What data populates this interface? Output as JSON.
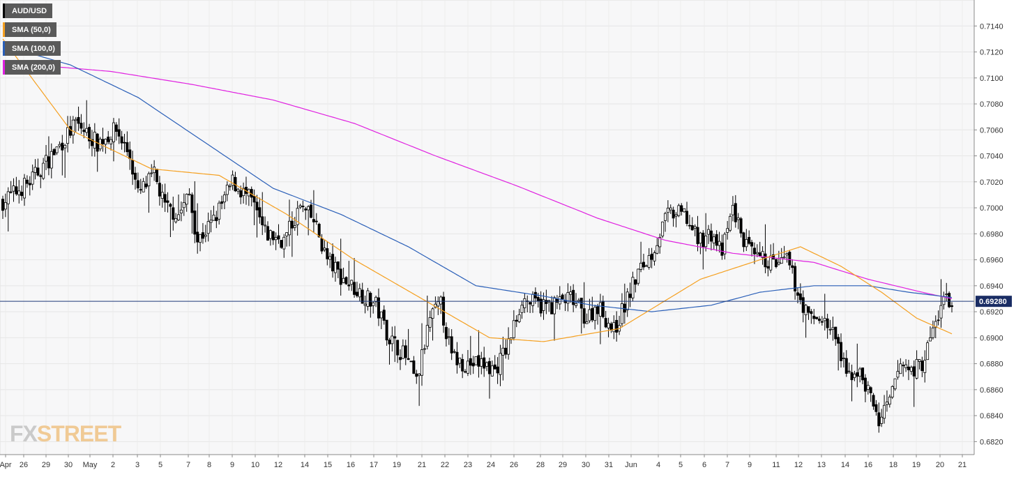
{
  "chart_data": {
    "type": "candlestick",
    "symbol": "AUD/USD",
    "ylim": [
      0.681,
      0.716
    ],
    "y_ticks": [
      "0.6820",
      "0.6840",
      "0.6860",
      "0.6880",
      "0.6900",
      "0.6920",
      "0.6940",
      "0.6960",
      "0.6980",
      "0.7000",
      "0.7020",
      "0.7040",
      "0.7060",
      "0.7080",
      "0.7100",
      "0.7120",
      "0.7140"
    ],
    "x_ticks": [
      "Apr",
      "26",
      "29",
      "30",
      "May",
      "2",
      "3",
      "5",
      "7",
      "8",
      "9",
      "10",
      "12",
      "14",
      "15",
      "16",
      "17",
      "19",
      "21",
      "22",
      "23",
      "24",
      "26",
      "28",
      "29",
      "30",
      "31",
      "Jun",
      "4",
      "5",
      "6",
      "7",
      "9",
      "11",
      "12",
      "13",
      "14",
      "16",
      "18",
      "19",
      "20",
      "21"
    ],
    "current_price": 0.6928,
    "current_price_label": "0.69280",
    "legend": [
      {
        "label": "AUD/USD",
        "color": "#000000"
      },
      {
        "label": "SMA (50,0)",
        "color": "#f5a020"
      },
      {
        "label": "SMA (100,0)",
        "color": "#2a5fb8"
      },
      {
        "label": "SMA (200,0)",
        "color": "#e020e0"
      }
    ],
    "close_anchors": [
      [
        0,
        0.7005
      ],
      [
        10,
        0.702
      ],
      [
        20,
        0.7045
      ],
      [
        27,
        0.7065
      ],
      [
        35,
        0.705
      ],
      [
        42,
        0.706
      ],
      [
        47,
        0.704
      ],
      [
        50,
        0.701
      ],
      [
        56,
        0.7025
      ],
      [
        60,
        0.7
      ],
      [
        65,
        0.6995
      ],
      [
        69,
        0.701
      ],
      [
        72,
        0.6975
      ],
      [
        78,
        0.699
      ],
      [
        85,
        0.702
      ],
      [
        92,
        0.7005
      ],
      [
        97,
        0.698
      ],
      [
        104,
        0.6975
      ],
      [
        110,
        0.7
      ],
      [
        115,
        0.699
      ],
      [
        120,
        0.696
      ],
      [
        126,
        0.6945
      ],
      [
        132,
        0.6935
      ],
      [
        138,
        0.6925
      ],
      [
        143,
        0.69
      ],
      [
        149,
        0.6885
      ],
      [
        153,
        0.6865
      ],
      [
        158,
        0.6915
      ],
      [
        162,
        0.6925
      ],
      [
        166,
        0.6885
      ],
      [
        171,
        0.688
      ],
      [
        177,
        0.688
      ],
      [
        182,
        0.6875
      ],
      [
        187,
        0.6895
      ],
      [
        192,
        0.693
      ],
      [
        198,
        0.6925
      ],
      [
        203,
        0.6925
      ],
      [
        210,
        0.693
      ],
      [
        216,
        0.6915
      ],
      [
        220,
        0.6925
      ],
      [
        226,
        0.6905
      ],
      [
        231,
        0.693
      ],
      [
        235,
        0.695
      ],
      [
        240,
        0.6965
      ],
      [
        246,
        0.6995
      ],
      [
        252,
        0.6995
      ],
      [
        257,
        0.6975
      ],
      [
        262,
        0.698
      ],
      [
        266,
        0.6965
      ],
      [
        270,
        0.7
      ],
      [
        274,
        0.6975
      ],
      [
        278,
        0.696
      ],
      [
        282,
        0.696
      ],
      [
        287,
        0.6955
      ],
      [
        290,
        0.696
      ],
      [
        294,
        0.6935
      ],
      [
        298,
        0.6915
      ],
      [
        303,
        0.6915
      ],
      [
        308,
        0.69
      ],
      [
        312,
        0.687
      ],
      [
        316,
        0.6875
      ],
      [
        320,
        0.686
      ],
      [
        324,
        0.6835
      ],
      [
        328,
        0.685
      ],
      [
        332,
        0.688
      ],
      [
        336,
        0.6875
      ],
      [
        340,
        0.688
      ],
      [
        344,
        0.6905
      ],
      [
        348,
        0.693
      ],
      [
        351,
        0.6928
      ]
    ],
    "sma50_anchors": [
      [
        0,
        0.713
      ],
      [
        25,
        0.706
      ],
      [
        55,
        0.703
      ],
      [
        80,
        0.7025
      ],
      [
        105,
        0.6995
      ],
      [
        130,
        0.696
      ],
      [
        155,
        0.693
      ],
      [
        180,
        0.69
      ],
      [
        200,
        0.6897
      ],
      [
        228,
        0.6907
      ],
      [
        258,
        0.6945
      ],
      [
        283,
        0.6962
      ],
      [
        295,
        0.697
      ],
      [
        310,
        0.6955
      ],
      [
        325,
        0.6935
      ],
      [
        338,
        0.6915
      ],
      [
        351,
        0.6903
      ]
    ],
    "sma100_anchors": [
      [
        0,
        0.7125
      ],
      [
        25,
        0.711
      ],
      [
        50,
        0.7085
      ],
      [
        75,
        0.705
      ],
      [
        100,
        0.7015
      ],
      [
        125,
        0.6995
      ],
      [
        150,
        0.697
      ],
      [
        175,
        0.694
      ],
      [
        200,
        0.6932
      ],
      [
        218,
        0.6925
      ],
      [
        240,
        0.692
      ],
      [
        262,
        0.6925
      ],
      [
        280,
        0.6935
      ],
      [
        300,
        0.694
      ],
      [
        320,
        0.694
      ],
      [
        335,
        0.6935
      ],
      [
        351,
        0.6931
      ]
    ],
    "sma200_anchors": [
      [
        0,
        0.7112
      ],
      [
        40,
        0.7105
      ],
      [
        70,
        0.7095
      ],
      [
        100,
        0.7083
      ],
      [
        130,
        0.7065
      ],
      [
        160,
        0.704
      ],
      [
        190,
        0.7017
      ],
      [
        220,
        0.6992
      ],
      [
        245,
        0.6975
      ],
      [
        270,
        0.6965
      ],
      [
        300,
        0.6958
      ],
      [
        320,
        0.6945
      ],
      [
        340,
        0.6935
      ],
      [
        351,
        0.693
      ]
    ]
  },
  "watermark": {
    "part1": "FX",
    "part2": "STREET"
  }
}
